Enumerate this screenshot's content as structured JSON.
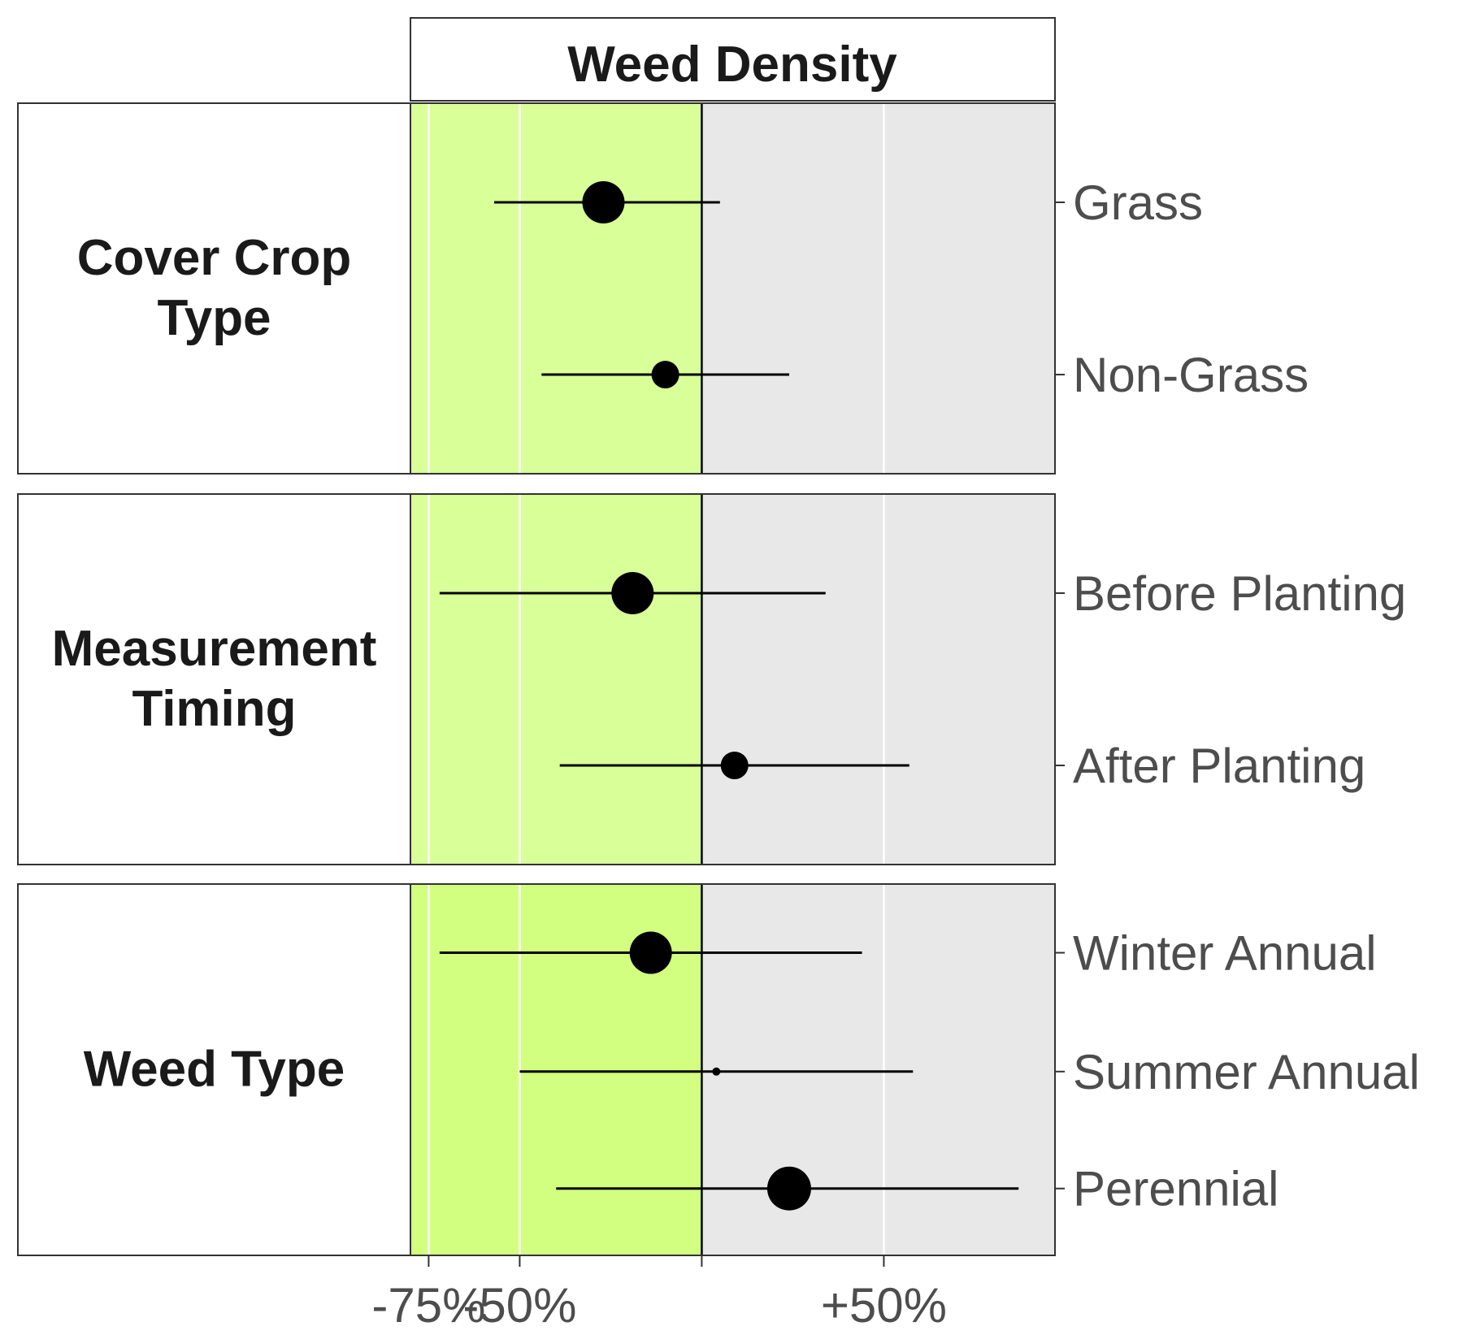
{
  "chart_data": {
    "type": "forest",
    "title": "Weed Density",
    "xlabel": "",
    "ylabel": "",
    "x_axis": {
      "ticks": [
        {
          "value": -75,
          "label": "-75%"
        },
        {
          "value": -50,
          "label": "-50%"
        },
        {
          "value": 0,
          "label": ""
        },
        {
          "value": 50,
          "label": "+50%"
        }
      ],
      "range": [
        -80,
        97
      ],
      "zero_line": 0
    },
    "shading": {
      "negative_color": "#d9ff99",
      "positive_color": "#e8e8e8",
      "negative_colors_by_panel": [
        "#d9ff99",
        "#d9ff99",
        "#d2ff80"
      ]
    },
    "panels": [
      {
        "label_lines": [
          "Cover Crop",
          "Type"
        ],
        "rows": [
          {
            "label": "Grass",
            "estimate": -27,
            "lower": -57,
            "upper": 5,
            "size": 3
          },
          {
            "label": "Non-Grass",
            "estimate": -10,
            "lower": -44,
            "upper": 24,
            "size": 2
          }
        ]
      },
      {
        "label_lines": [
          "Measurement",
          "Timing"
        ],
        "rows": [
          {
            "label": "Before Planting",
            "estimate": -19,
            "lower": -72,
            "upper": 34,
            "size": 3
          },
          {
            "label": "After Planting",
            "estimate": 9,
            "lower": -39,
            "upper": 57,
            "size": 2
          }
        ]
      },
      {
        "label_lines": [
          "Weed Type"
        ],
        "rows": [
          {
            "label": "Winter Annual",
            "estimate": -14,
            "lower": -72,
            "upper": 44,
            "size": 3
          },
          {
            "label": "Summer Annual",
            "estimate": 4,
            "lower": -50,
            "upper": 58,
            "size": 1
          },
          {
            "label": "Perennial",
            "estimate": 24,
            "lower": -40,
            "upper": 87,
            "size": 4
          }
        ]
      }
    ]
  }
}
